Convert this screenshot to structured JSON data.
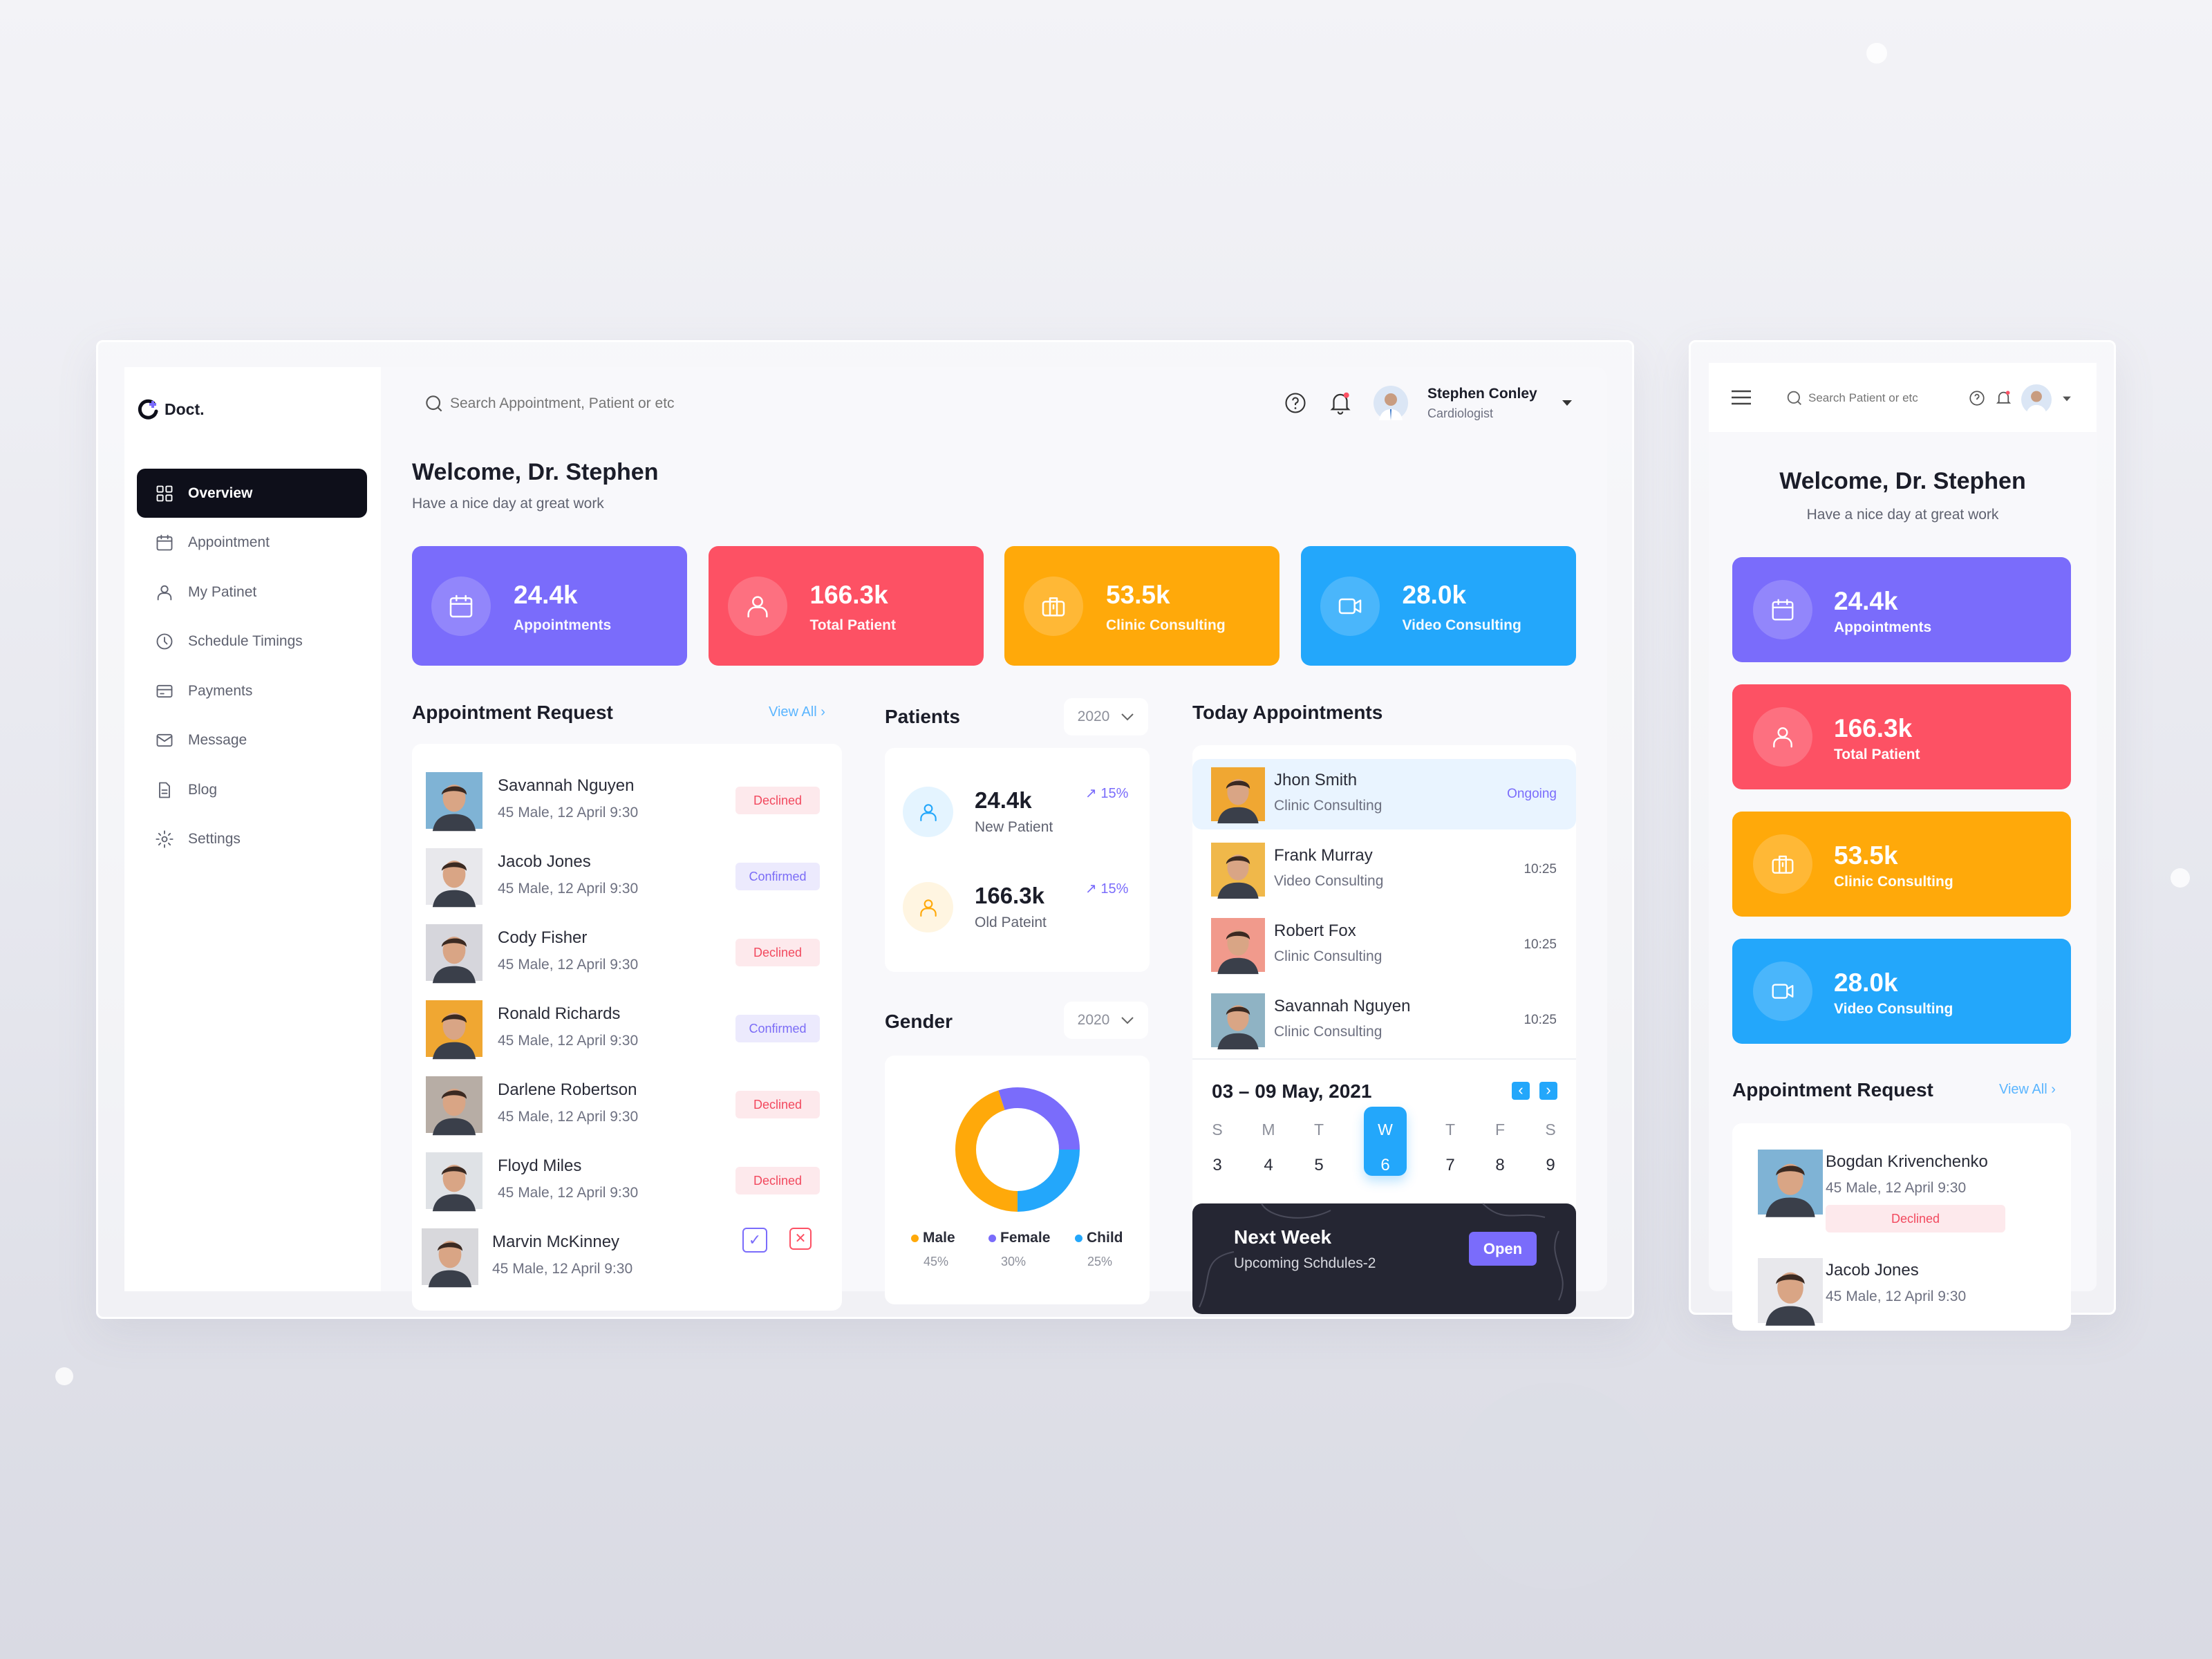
{
  "app": {
    "logo": "Doct."
  },
  "sidebar": {
    "items": [
      {
        "label": "Overview",
        "icon": "grid-icon",
        "active": true
      },
      {
        "label": "Appointment",
        "icon": "calendar-icon"
      },
      {
        "label": "My Patinet",
        "icon": "user-icon"
      },
      {
        "label": "Schedule Timings",
        "icon": "clock-icon"
      },
      {
        "label": "Payments",
        "icon": "card-icon"
      },
      {
        "label": "Message",
        "icon": "mail-icon"
      },
      {
        "label": "Blog",
        "icon": "document-icon"
      },
      {
        "label": "Settings",
        "icon": "gear-icon"
      }
    ]
  },
  "header": {
    "search_placeholder": "Search Appointment, Patient or etc",
    "user": {
      "name": "Stephen Conley",
      "role": "Cardiologist"
    }
  },
  "welcome": {
    "title": "Welcome, Dr. Stephen",
    "subtitle": "Have a nice day at great work"
  },
  "stats": [
    {
      "value": "24.4k",
      "label": "Appointments",
      "color": "#7a6cfb",
      "icon": "calendar-icon"
    },
    {
      "value": "166.3k",
      "label": "Total Patient",
      "color": "#fd5164",
      "icon": "user-icon"
    },
    {
      "value": "53.5k",
      "label": "Clinic Consulting",
      "color": "#ffa90a",
      "icon": "briefcase-icon"
    },
    {
      "value": "28.0k",
      "label": "Video Consulting",
      "color": "#23a7fb",
      "icon": "video-icon"
    }
  ],
  "appointment_request": {
    "title": "Appointment Request",
    "view_all": "View All",
    "items": [
      {
        "name": "Savannah Nguyen",
        "details": "45 Male, 12 April 9:30",
        "status": "Declined"
      },
      {
        "name": "Jacob Jones",
        "details": "45 Male, 12 April 9:30",
        "status": "Confirmed"
      },
      {
        "name": "Cody Fisher",
        "details": "45 Male, 12 April 9:30",
        "status": "Declined"
      },
      {
        "name": "Ronald Richards",
        "details": "45 Male, 12 April 9:30",
        "status": "Confirmed"
      },
      {
        "name": "Darlene Robertson",
        "details": "45 Male, 12 April 9:30",
        "status": "Declined"
      },
      {
        "name": "Floyd Miles",
        "details": "45 Male, 12 April 9:30",
        "status": "Declined"
      },
      {
        "name": "Marvin McKinney",
        "details": "45 Male, 12 April 9:30",
        "status": "pending"
      }
    ]
  },
  "patients": {
    "title": "Patients",
    "year": "2020",
    "items": [
      {
        "value": "24.4k",
        "label": "New Patient",
        "trend": "15%",
        "color": "#23a7fb"
      },
      {
        "value": "166.3k",
        "label": "Old Pateint",
        "trend": "15%",
        "color": "#ffa90a"
      }
    ]
  },
  "gender": {
    "title": "Gender",
    "year": "2020",
    "segments": [
      {
        "label": "Male",
        "percent": 45,
        "percent_label": "45%",
        "color": "#ffa90a"
      },
      {
        "label": "Female",
        "percent": 30,
        "percent_label": "30%",
        "color": "#7a6cfb"
      },
      {
        "label": "Child",
        "percent": 25,
        "percent_label": "25%",
        "color": "#23a7fb"
      }
    ]
  },
  "today": {
    "title": "Today Appointments",
    "items": [
      {
        "name": "Jhon Smith",
        "type": "Clinic Consulting",
        "time": "Ongoing",
        "active": true
      },
      {
        "name": "Frank Murray",
        "type": "Video Consulting",
        "time": "10:25"
      },
      {
        "name": "Robert Fox",
        "type": "Clinic Consulting",
        "time": "10:25"
      },
      {
        "name": "Savannah Nguyen",
        "type": "Clinic Consulting",
        "time": "10:25"
      }
    ],
    "calendar": {
      "range": "03 – 09 May, 2021",
      "days": [
        {
          "letter": "S",
          "date": "3"
        },
        {
          "letter": "M",
          "date": "4"
        },
        {
          "letter": "T",
          "date": "5"
        },
        {
          "letter": "W",
          "date": "6",
          "active": true
        },
        {
          "letter": "T",
          "date": "7"
        },
        {
          "letter": "F",
          "date": "8"
        },
        {
          "letter": "S",
          "date": "9"
        }
      ]
    },
    "next_week": {
      "title": "Next Week",
      "subtitle": "Upcoming Schdules-2",
      "button": "Open"
    }
  },
  "mobile": {
    "search_placeholder": "Search Patient or etc",
    "appointment_request": {
      "title": "Appointment Request",
      "view_all": "View All",
      "items": [
        {
          "name": "Bogdan Krivenchenko",
          "details": "45 Male, 12 April 9:30",
          "status": "Declined"
        },
        {
          "name": "Jacob Jones",
          "details": "45 Male, 12 April 9:30"
        }
      ]
    }
  }
}
